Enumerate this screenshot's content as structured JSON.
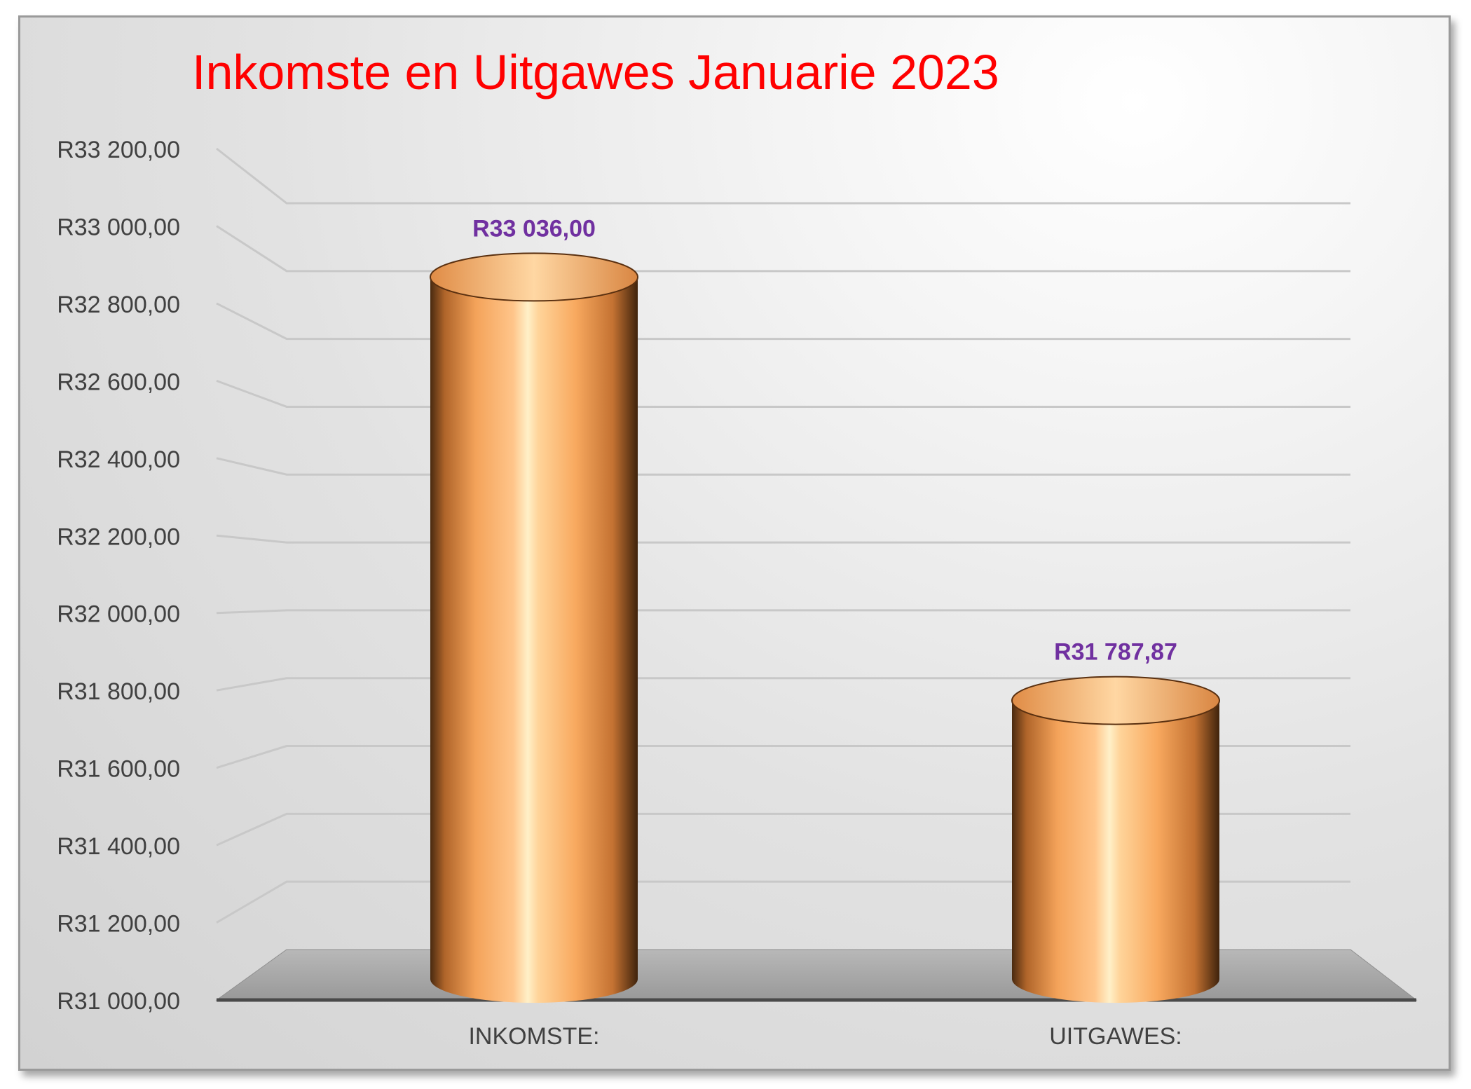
{
  "chart_data": {
    "type": "bar",
    "title": "Inkomste en Uitgawes Januarie 2023",
    "categories": [
      "INKOMSTE:",
      "UITGAWES:"
    ],
    "values": [
      33036.0,
      31787.87
    ],
    "value_labels": [
      "R33 036,00",
      "R31 787,87"
    ],
    "ylim": [
      31000,
      33200
    ],
    "y_ticks": [
      31000,
      31200,
      31400,
      31600,
      31800,
      32000,
      32200,
      32400,
      32600,
      32800,
      33000,
      33200
    ],
    "y_tick_labels": [
      "R31 000,00",
      "R31 200,00",
      "R31 400,00",
      "R31 600,00",
      "R31 800,00",
      "R32 000,00",
      "R32 200,00",
      "R32 400,00",
      "R32 600,00",
      "R32 800,00",
      "R33 000,00",
      "R33 200,00"
    ],
    "grid": true,
    "legend": "none",
    "bar_shape": "cylinder-3d",
    "colors": {
      "title": "#ff0000",
      "data_label": "#7030a0",
      "bar_light": "#ffdca8",
      "bar_mid": "#f7a457",
      "bar_dark": "#6a3a14",
      "floor": "#a6a6a6"
    }
  }
}
